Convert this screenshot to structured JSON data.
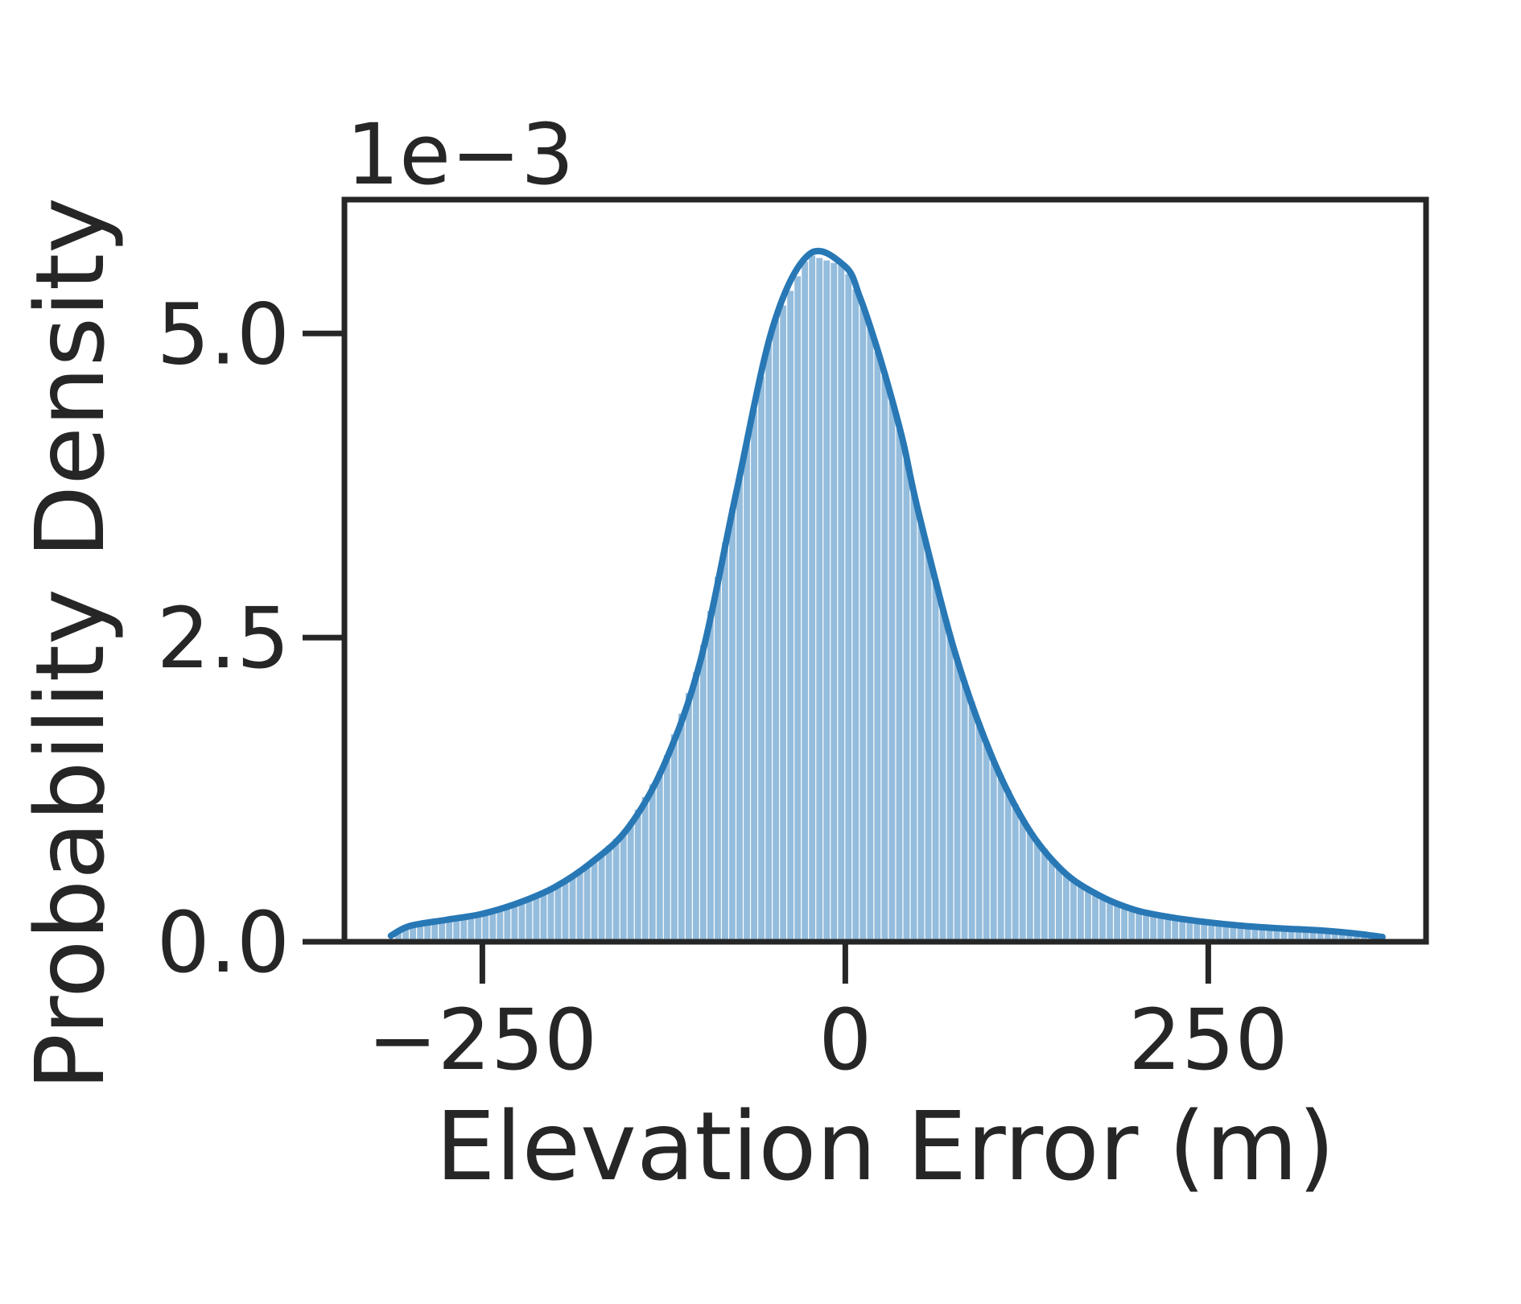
{
  "chart_data": {
    "type": "area",
    "xlabel": "Elevation Error (m)",
    "ylabel": "Probability Density",
    "y_offset_label": "1e−3",
    "xlim": [
      -345,
      400
    ],
    "ylim": [
      0,
      6.1
    ],
    "xticks": [
      -250,
      0,
      250
    ],
    "xtick_labels": [
      "−250",
      "0",
      "250"
    ],
    "yticks": [
      0.0,
      2.5,
      5.0
    ],
    "ytick_labels": [
      "0.0",
      "2.5",
      "5.0"
    ],
    "grid": false,
    "legend": "none",
    "colors": {
      "kde_line": "#2878b5",
      "hist_bars": "#94bcdc",
      "axes": "#262626"
    },
    "kde": {
      "x": [
        -313,
        -300,
        -275,
        -250,
        -225,
        -200,
        -175,
        -150,
        -125,
        -100,
        -75,
        -50,
        -25,
        0,
        10,
        20,
        30,
        40,
        50,
        75,
        100,
        125,
        150,
        175,
        200,
        225,
        250,
        275,
        300,
        325,
        350,
        370
      ],
      "y": [
        0.05,
        0.13,
        0.18,
        0.23,
        0.32,
        0.45,
        0.65,
        0.93,
        1.45,
        2.3,
        3.7,
        5.05,
        5.65,
        5.55,
        5.3,
        4.95,
        4.55,
        4.1,
        3.55,
        2.4,
        1.55,
        0.95,
        0.58,
        0.38,
        0.26,
        0.2,
        0.16,
        0.13,
        0.11,
        0.095,
        0.07,
        0.04
      ]
    },
    "hist": {
      "bin_width": 5,
      "x_start": -310,
      "x_end": 370
    }
  }
}
